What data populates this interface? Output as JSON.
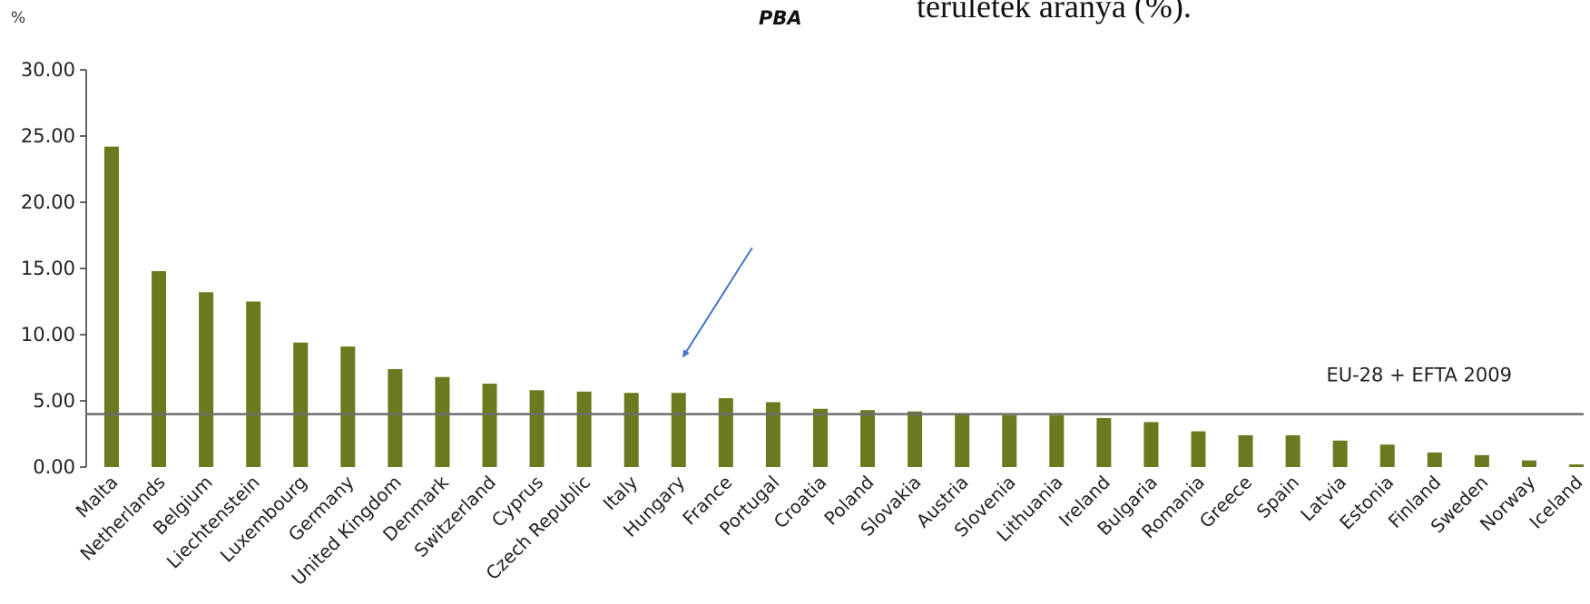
{
  "header": {
    "top_text": "területek aránya (%).",
    "unit": "%"
  },
  "chart_data": {
    "type": "bar",
    "title": "PBA",
    "xlabel": "",
    "ylabel": "",
    "ylim": [
      0,
      30
    ],
    "yticks": [
      "0.00",
      "5.00",
      "10.00",
      "15.00",
      "20.00",
      "25.00",
      "30.00"
    ],
    "grid": false,
    "bar_color": "#6b7a1f",
    "reference_line": {
      "label": "EU-28 + EFTA 2009",
      "value": 4.0,
      "color": "#6e6e6e"
    },
    "arrow_color": "#4472c4",
    "annotation_target": "Hungary",
    "categories": [
      "Malta",
      "Netherlands",
      "Belgium",
      "Liechtenstein",
      "Luxembourg",
      "Germany",
      "United Kingdom",
      "Denmark",
      "Switzerland",
      "Cyprus",
      "Czech Republic",
      "Italy",
      "Hungary",
      "France",
      "Portugal",
      "Croatia",
      "Poland",
      "Slovakia",
      "Austria",
      "Slovenia",
      "Lithuania",
      "Ireland",
      "Bulgaria",
      "Romania",
      "Greece",
      "Spain",
      "Latvia",
      "Estonia",
      "Finland",
      "Sweden",
      "Norway",
      "Iceland"
    ],
    "values": [
      24.2,
      14.8,
      13.2,
      12.5,
      9.4,
      9.1,
      7.4,
      6.8,
      6.3,
      5.8,
      5.7,
      5.6,
      5.6,
      5.2,
      4.9,
      4.4,
      4.3,
      4.2,
      4.0,
      3.9,
      3.9,
      3.7,
      3.4,
      2.7,
      2.4,
      2.4,
      2.0,
      1.7,
      1.1,
      0.9,
      0.5,
      0.2
    ]
  }
}
